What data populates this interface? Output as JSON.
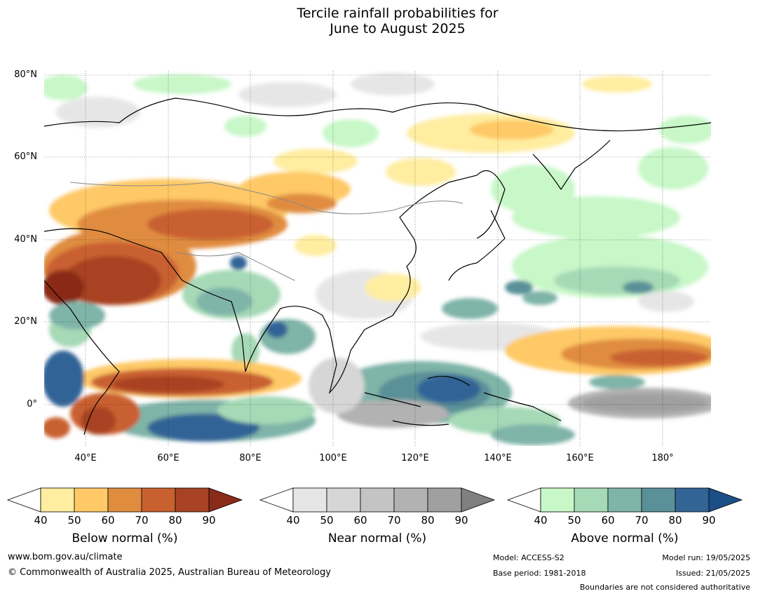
{
  "title": {
    "line1": "Tercile rainfall probabilities for",
    "line2": "June to August 2025"
  },
  "map": {
    "lat_labels": [
      "80°N",
      "60°N",
      "40°N",
      "20°N",
      "0°"
    ],
    "lon_labels": [
      "40°E",
      "60°E",
      "80°E",
      "100°E",
      "120°E",
      "140°E",
      "160°E",
      "180°"
    ],
    "extent": {
      "lon_min": 30,
      "lon_max": 192,
      "lat_min": -10,
      "lat_max": 81
    }
  },
  "colorbars": [
    {
      "key": "below",
      "title": "Below normal (%)",
      "ticks": [
        "40",
        "50",
        "60",
        "70",
        "80",
        "90"
      ],
      "colors": [
        "#ffeda0",
        "#fec966",
        "#e08c3f",
        "#c96030",
        "#a84224",
        "#8a2a18"
      ]
    },
    {
      "key": "near",
      "title": "Near normal (%)",
      "ticks": [
        "40",
        "50",
        "60",
        "70",
        "80",
        "90"
      ],
      "colors": [
        "#e6e6e6",
        "#d6d6d6",
        "#c4c4c4",
        "#b2b2b2",
        "#a0a0a0",
        "#808080"
      ]
    },
    {
      "key": "above",
      "title": "Above normal (%)",
      "ticks": [
        "40",
        "50",
        "60",
        "70",
        "80",
        "90"
      ],
      "colors": [
        "#c8f7c8",
        "#a6d9b6",
        "#7fb4a8",
        "#5a9098",
        "#326496",
        "#1d4f87"
      ]
    }
  ],
  "footer": {
    "url": "www.bom.gov.au/climate",
    "copyright": "© Commonwealth of Australia 2025, Australian Bureau of Meteorology",
    "model": "Model: ACCESS-S2",
    "base_period": "Base period: 1981-2018",
    "model_run": "Model run: 19/05/2025",
    "issued": "Issued: 21/05/2025",
    "disclaimer": "Boundaries are not considered authoritative"
  }
}
